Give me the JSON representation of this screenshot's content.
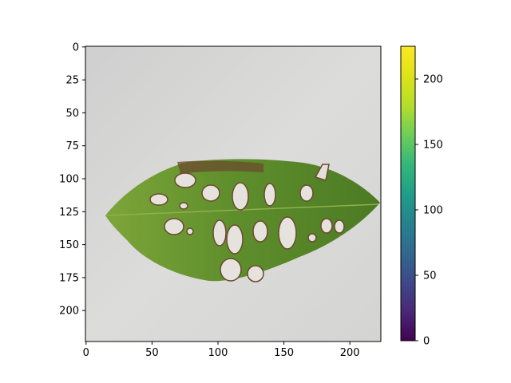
{
  "image_axes": {
    "x_ticks": [
      {
        "value": 0,
        "label": "0"
      },
      {
        "value": 50,
        "label": "50"
      },
      {
        "value": 100,
        "label": "100"
      },
      {
        "value": 150,
        "label": "150"
      },
      {
        "value": 200,
        "label": "200"
      }
    ],
    "y_ticks": [
      {
        "value": 0,
        "label": "0"
      },
      {
        "value": 25,
        "label": "25"
      },
      {
        "value": 50,
        "label": "50"
      },
      {
        "value": 75,
        "label": "75"
      },
      {
        "value": 100,
        "label": "100"
      },
      {
        "value": 125,
        "label": "125"
      },
      {
        "value": 150,
        "label": "150"
      },
      {
        "value": 175,
        "label": "175"
      },
      {
        "value": 200,
        "label": "200"
      }
    ],
    "x_range": [
      -0.5,
      223.5
    ],
    "y_range": [
      -0.5,
      223.5
    ]
  },
  "colorbar": {
    "colormap": "viridis",
    "range": [
      0,
      225
    ],
    "ticks": [
      {
        "value": 0,
        "label": "0"
      },
      {
        "value": 50,
        "label": "50"
      },
      {
        "value": 100,
        "label": "100"
      },
      {
        "value": 150,
        "label": "150"
      },
      {
        "value": 200,
        "label": "200"
      }
    ]
  },
  "image": {
    "subject": "leaf-with-holes",
    "background_color": "#d9d9d7",
    "leaf_color": "#5a8a2a"
  }
}
